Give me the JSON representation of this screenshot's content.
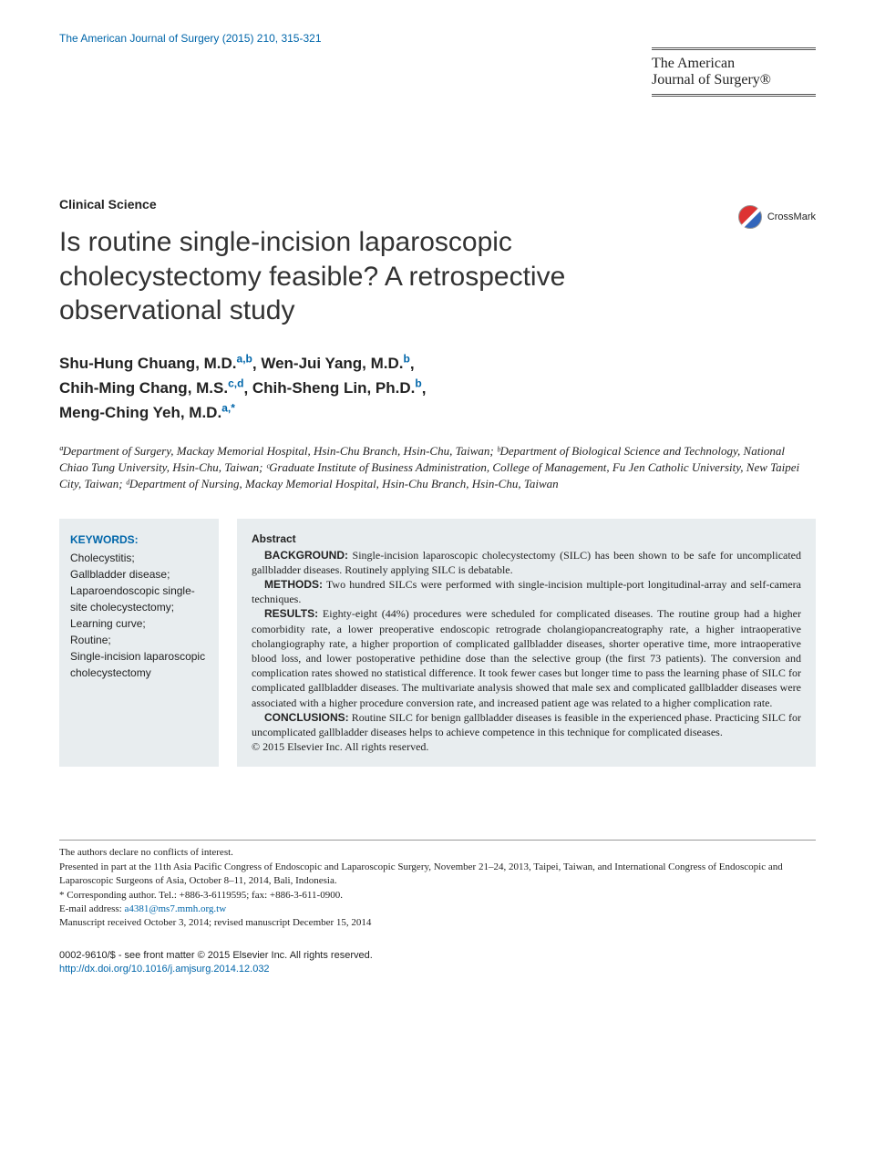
{
  "citation": "The American Journal of Surgery (2015) 210, 315-321",
  "journal_header": {
    "line1": "The American",
    "line2": "Journal of Surgery®"
  },
  "section_label": "Clinical Science",
  "title": "Is routine single-incision laparoscopic cholecystectomy feasible? A retrospective observational study",
  "crossmark_label": "CrossMark",
  "authors": [
    {
      "name": "Shu-Hung Chuang, M.D.",
      "aff": "a,b",
      "sep": ", "
    },
    {
      "name": "Wen-Jui Yang, M.D.",
      "aff": "b",
      "sep": ","
    },
    {
      "name": "Chih-Ming Chang, M.S.",
      "aff": "c,d",
      "sep": ", "
    },
    {
      "name": "Chih-Sheng Lin, Ph.D.",
      "aff": "b",
      "sep": ","
    },
    {
      "name": "Meng-Ching Yeh, M.D.",
      "aff": "a,*",
      "sep": ""
    }
  ],
  "affiliations": "ªDepartment of Surgery, Mackay Memorial Hospital, Hsin-Chu Branch, Hsin-Chu, Taiwan; ᵇDepartment of Biological Science and Technology, National Chiao Tung University, Hsin-Chu, Taiwan; ᶜGraduate Institute of Business Administration, College of Management, Fu Jen Catholic University, New Taipei City, Taiwan; ᵈDepartment of Nursing, Mackay Memorial Hospital, Hsin-Chu Branch, Hsin-Chu, Taiwan",
  "keywords": {
    "title": "KEYWORDS:",
    "items": [
      "Cholecystitis;",
      "Gallbladder disease;",
      "Laparoendoscopic single-site cholecystectomy;",
      "Learning curve;",
      "Routine;",
      "Single-incision laparoscopic cholecystectomy"
    ]
  },
  "abstract": {
    "title": "Abstract",
    "background_label": "BACKGROUND:",
    "background": "Single-incision laparoscopic cholecystectomy (SILC) has been shown to be safe for uncomplicated gallbladder diseases. Routinely applying SILC is debatable.",
    "methods_label": "METHODS:",
    "methods": "Two hundred SILCs were performed with single-incision multiple-port longitudinal-array and self-camera techniques.",
    "results_label": "RESULTS:",
    "results": "Eighty-eight (44%) procedures were scheduled for complicated diseases. The routine group had a higher comorbidity rate, a lower preoperative endoscopic retrograde cholangiopancreatography rate, a higher intraoperative cholangiography rate, a higher proportion of complicated gallbladder diseases, shorter operative time, more intraoperative blood loss, and lower postoperative pethidine dose than the selective group (the first 73 patients). The conversion and complication rates showed no statistical difference. It took fewer cases but longer time to pass the learning phase of SILC for complicated gallbladder diseases. The multivariate analysis showed that male sex and complicated gallbladder diseases were associated with a higher procedure conversion rate, and increased patient age was related to a higher complication rate.",
    "conclusions_label": "CONCLUSIONS:",
    "conclusions": "Routine SILC for benign gallbladder diseases is feasible in the experienced phase. Practicing SILC for uncomplicated gallbladder diseases helps to achieve competence in this technique for complicated diseases.",
    "copyright": "© 2015 Elsevier Inc. All rights reserved."
  },
  "footer": {
    "conflict": "The authors declare no conflicts of interest.",
    "presented": "Presented in part at the 11th Asia Pacific Congress of Endoscopic and Laparoscopic Surgery, November 21–24, 2013, Taipei, Taiwan, and International Congress of Endoscopic and Laparoscopic Surgeons of Asia, October 8–11, 2014, Bali, Indonesia.",
    "corresponding": "* Corresponding author. Tel.: +886-3-6119595; fax: +886-3-611-0900.",
    "email_label": "E-mail address: ",
    "email": "a4381@ms7.mmh.org.tw",
    "received": "Manuscript received October 3, 2014; revised manuscript December 15, 2014"
  },
  "bottom": {
    "issn": "0002-9610/$ - see front matter © 2015 Elsevier Inc. All rights reserved.",
    "doi": "http://dx.doi.org/10.1016/j.amjsurg.2014.12.032"
  }
}
